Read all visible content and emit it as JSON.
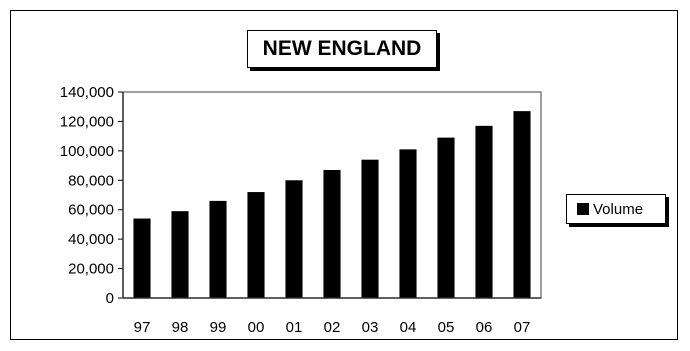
{
  "chart_data": {
    "type": "bar",
    "title": "NEW ENGLAND",
    "categories": [
      "97",
      "98",
      "99",
      "00",
      "01",
      "02",
      "03",
      "04",
      "05",
      "06",
      "07"
    ],
    "series": [
      {
        "name": "Volume",
        "values": [
          54000,
          59000,
          66000,
          72000,
          80000,
          87000,
          94000,
          101000,
          109000,
          117000,
          127000
        ]
      }
    ],
    "yticks": [
      "0",
      "20,000",
      "40,000",
      "60,000",
      "80,000",
      "100,000",
      "120,000",
      "140,000"
    ],
    "ylim": [
      0,
      140000
    ],
    "xlabel": "",
    "ylabel": "",
    "grid": false,
    "legend_position": "right",
    "bar_color": "#000000"
  }
}
